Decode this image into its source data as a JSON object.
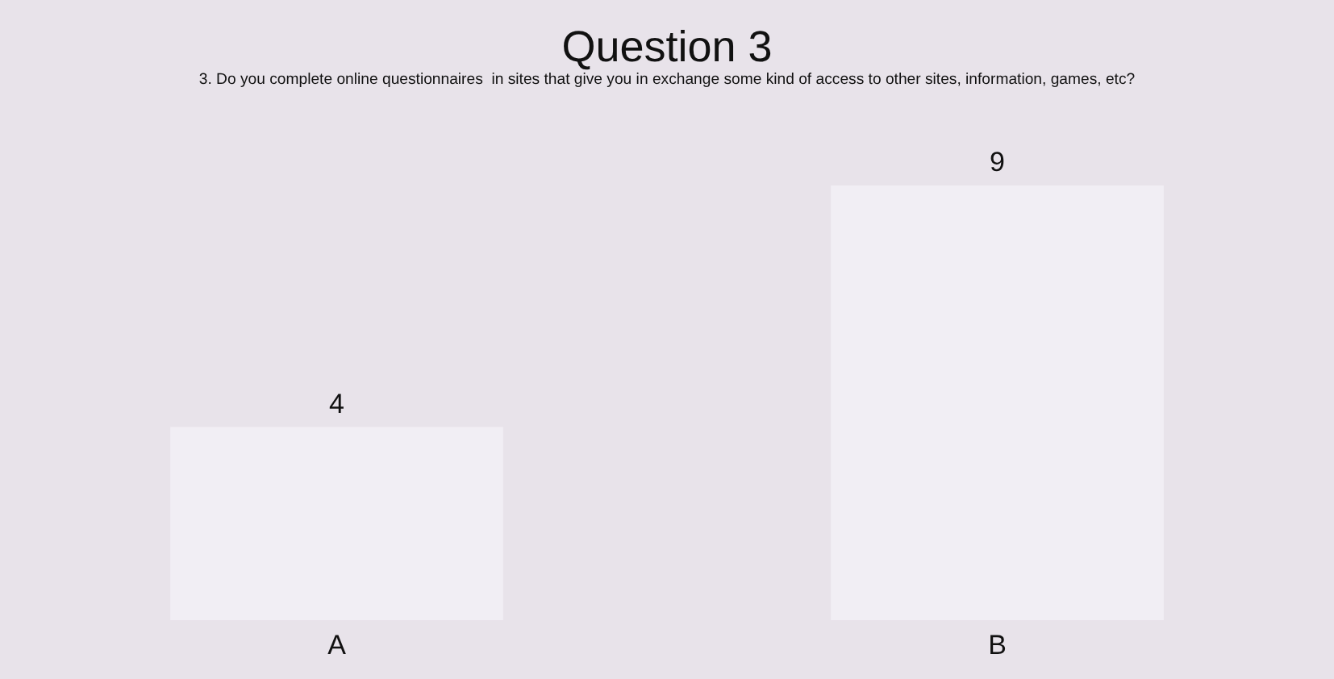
{
  "chart_data": {
    "type": "bar",
    "title": "Question 3",
    "subtitle": "3. Do you complete online questionnaires  in sites that give you in exchange some kind of access to other sites, information, games, etc?",
    "categories": [
      "A",
      "B"
    ],
    "values": [
      4,
      9
    ],
    "color": "#f1eef4",
    "data_labels": true,
    "grid": false,
    "legend": false
  }
}
